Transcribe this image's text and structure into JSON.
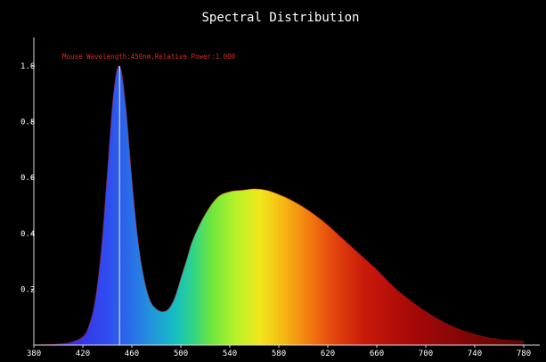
{
  "chart_data": {
    "type": "area",
    "title": "Spectral Distribution",
    "xlabel": "",
    "ylabel": "",
    "annotation": "Mouse Wavelength:450nm,Relative Power:1.000",
    "xlim": [
      380,
      780
    ],
    "ylim": [
      0,
      1.08
    ],
    "xticks": [
      380,
      420,
      460,
      500,
      540,
      580,
      620,
      660,
      700,
      740,
      780
    ],
    "yticks": [
      0.2,
      0.4,
      0.6,
      0.8,
      1.0
    ],
    "ytick_labels": [
      "0.2",
      "0.4",
      "0.6",
      "0.8",
      "1.0"
    ],
    "cursor_wavelength": 450,
    "grid": false,
    "fill": "spectrum-colored",
    "series": [
      {
        "x": [
          380,
          400,
          410,
          420,
          425,
          430,
          435,
          440,
          445,
          450,
          455,
          460,
          465,
          470,
          475,
          480,
          485,
          490,
          495,
          500,
          505,
          510,
          520,
          530,
          540,
          550,
          560,
          570,
          580,
          590,
          600,
          610,
          620,
          630,
          640,
          650,
          660,
          670,
          680,
          700,
          720,
          740,
          760,
          780
        ],
        "y": [
          0.0,
          0.004,
          0.01,
          0.03,
          0.07,
          0.16,
          0.34,
          0.62,
          0.9,
          1.0,
          0.86,
          0.6,
          0.38,
          0.24,
          0.16,
          0.13,
          0.12,
          0.13,
          0.17,
          0.24,
          0.31,
          0.38,
          0.47,
          0.53,
          0.55,
          0.555,
          0.56,
          0.555,
          0.54,
          0.52,
          0.495,
          0.465,
          0.43,
          0.39,
          0.35,
          0.31,
          0.27,
          0.225,
          0.185,
          0.12,
          0.07,
          0.038,
          0.02,
          0.015
        ]
      }
    ]
  },
  "colors": {
    "background": "#000000",
    "axis": "#dddddd",
    "text": "#ffffff",
    "annotation": "#d92b2b",
    "cursor_line": "#f2f2f2"
  }
}
